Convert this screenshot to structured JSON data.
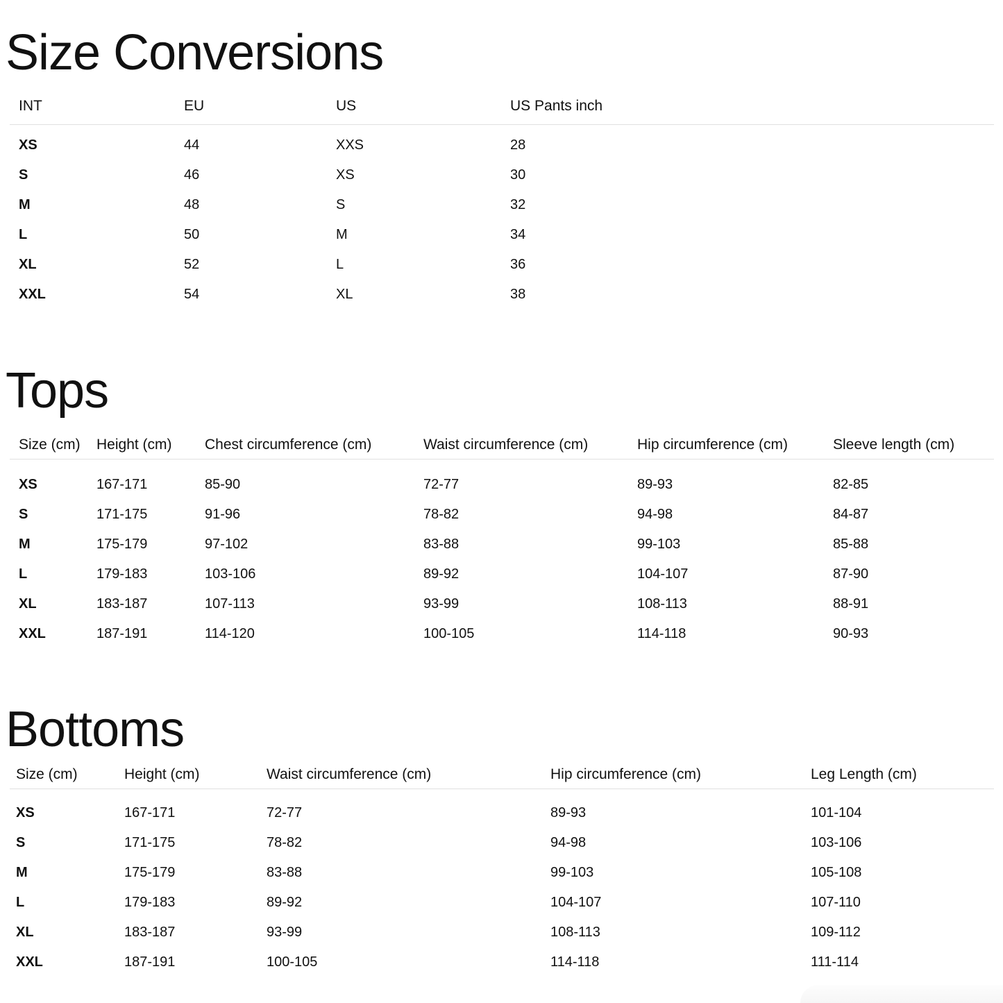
{
  "page": {
    "text_color": "#111111",
    "rule_color": "#e0e0e0",
    "widget_color": "#f6f6f6"
  },
  "size_conversions": {
    "title": "Size Conversions",
    "columns": [
      "INT",
      "EU",
      "US",
      "US Pants inch"
    ],
    "rows": [
      {
        "int": "XS",
        "eu": "44",
        "us": "XXS",
        "pants": "28"
      },
      {
        "int": "S",
        "eu": "46",
        "us": "XS",
        "pants": "30"
      },
      {
        "int": "M",
        "eu": "48",
        "us": "S",
        "pants": "32"
      },
      {
        "int": "L",
        "eu": "50",
        "us": "M",
        "pants": "34"
      },
      {
        "int": "XL",
        "eu": "52",
        "us": "L",
        "pants": "36"
      },
      {
        "int": "XXL",
        "eu": "54",
        "us": "XL",
        "pants": "38"
      }
    ]
  },
  "tops": {
    "title": "Tops",
    "columns": [
      "Size (cm)",
      "Height (cm)",
      "Chest circumference (cm)",
      "Waist circumference (cm)",
      "Hip circumference (cm)",
      "Sleeve length (cm)"
    ],
    "rows": [
      {
        "size": "XS",
        "height": "167-171",
        "chest": "85-90",
        "waist": "72-77",
        "hip": "89-93",
        "sleeve": "82-85"
      },
      {
        "size": "S",
        "height": "171-175",
        "chest": "91-96",
        "waist": "78-82",
        "hip": "94-98",
        "sleeve": "84-87"
      },
      {
        "size": "M",
        "height": "175-179",
        "chest": "97-102",
        "waist": "83-88",
        "hip": "99-103",
        "sleeve": "85-88"
      },
      {
        "size": "L",
        "height": "179-183",
        "chest": "103-106",
        "waist": "89-92",
        "hip": "104-107",
        "sleeve": "87-90"
      },
      {
        "size": "XL",
        "height": "183-187",
        "chest": "107-113",
        "waist": "93-99",
        "hip": "108-113",
        "sleeve": "88-91"
      },
      {
        "size": "XXL",
        "height": "187-191",
        "chest": "114-120",
        "waist": "100-105",
        "hip": "114-118",
        "sleeve": "90-93"
      }
    ]
  },
  "bottoms": {
    "title": "Bottoms",
    "columns": [
      "Size (cm)",
      "Height (cm)",
      "Waist circumference (cm)",
      "Hip circumference (cm)",
      "Leg Length (cm)"
    ],
    "rows": [
      {
        "size": "XS",
        "height": "167-171",
        "waist": "72-77",
        "hip": "89-93",
        "leg": "101-104"
      },
      {
        "size": "S",
        "height": "171-175",
        "waist": "78-82",
        "hip": "94-98",
        "leg": "103-106"
      },
      {
        "size": "M",
        "height": "175-179",
        "waist": "83-88",
        "hip": "99-103",
        "leg": "105-108"
      },
      {
        "size": "L",
        "height": "179-183",
        "waist": "89-92",
        "hip": "104-107",
        "leg": "107-110"
      },
      {
        "size": "XL",
        "height": "183-187",
        "waist": "93-99",
        "hip": "108-113",
        "leg": "109-112"
      },
      {
        "size": "XXL",
        "height": "187-191",
        "waist": "100-105",
        "hip": "114-118",
        "leg": "111-114"
      }
    ]
  }
}
